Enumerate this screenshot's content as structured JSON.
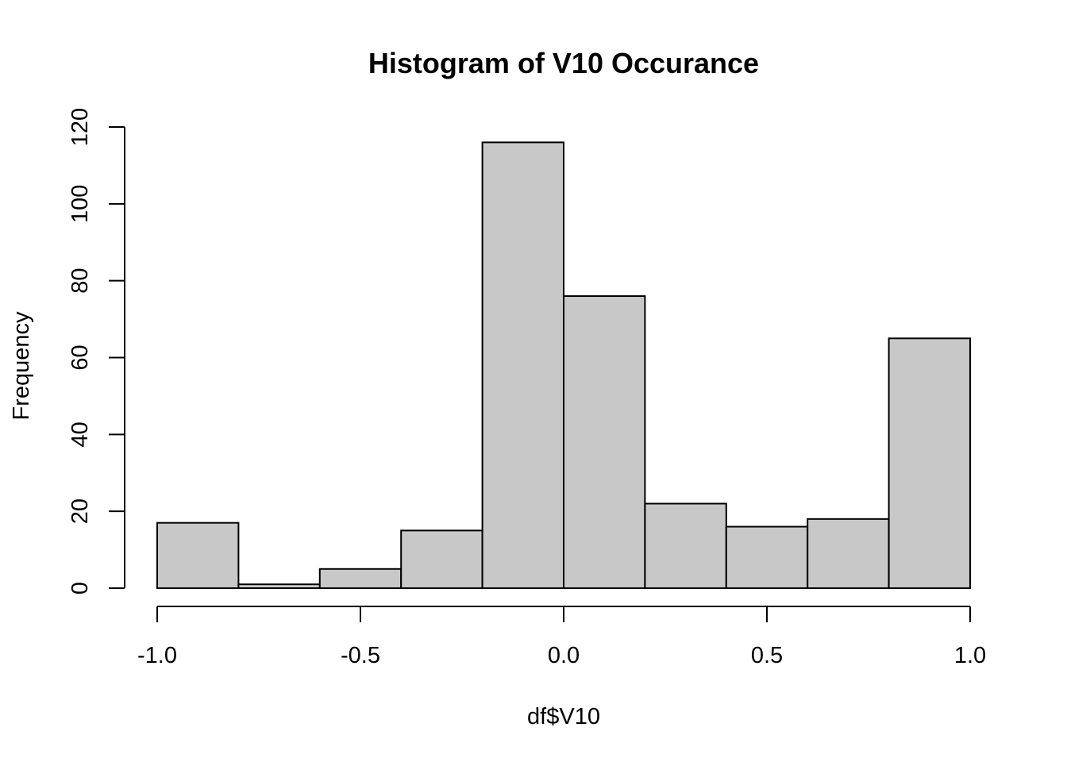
{
  "chart_data": {
    "type": "bar",
    "title": "Histogram of V10 Occurance",
    "xlabel": "df$V10",
    "ylabel": "Frequency",
    "bins": [
      {
        "start": -1.0,
        "end": -0.8,
        "count": 17
      },
      {
        "start": -0.8,
        "end": -0.6,
        "count": 1
      },
      {
        "start": -0.6,
        "end": -0.4,
        "count": 5
      },
      {
        "start": -0.4,
        "end": -0.2,
        "count": 15
      },
      {
        "start": -0.2,
        "end": 0.0,
        "count": 116
      },
      {
        "start": 0.0,
        "end": 0.2,
        "count": 76
      },
      {
        "start": 0.2,
        "end": 0.4,
        "count": 22
      },
      {
        "start": 0.4,
        "end": 0.6,
        "count": 16
      },
      {
        "start": 0.6,
        "end": 0.8,
        "count": 18
      },
      {
        "start": 0.8,
        "end": 1.0,
        "count": 65
      }
    ],
    "xlim": [
      -1.0,
      1.0
    ],
    "ylim": [
      0,
      120
    ],
    "x_ticks": [
      -1.0,
      -0.5,
      0.0,
      0.5,
      1.0
    ],
    "x_tick_labels": [
      "-1.0",
      "-0.5",
      "0.0",
      "0.5",
      "1.0"
    ],
    "y_ticks": [
      0,
      20,
      40,
      60,
      80,
      100,
      120
    ],
    "y_tick_labels": [
      "0",
      "20",
      "40",
      "60",
      "80",
      "100",
      "120"
    ],
    "bar_color": "#c8c8c8",
    "edge_color": "#000000",
    "grid": false
  }
}
